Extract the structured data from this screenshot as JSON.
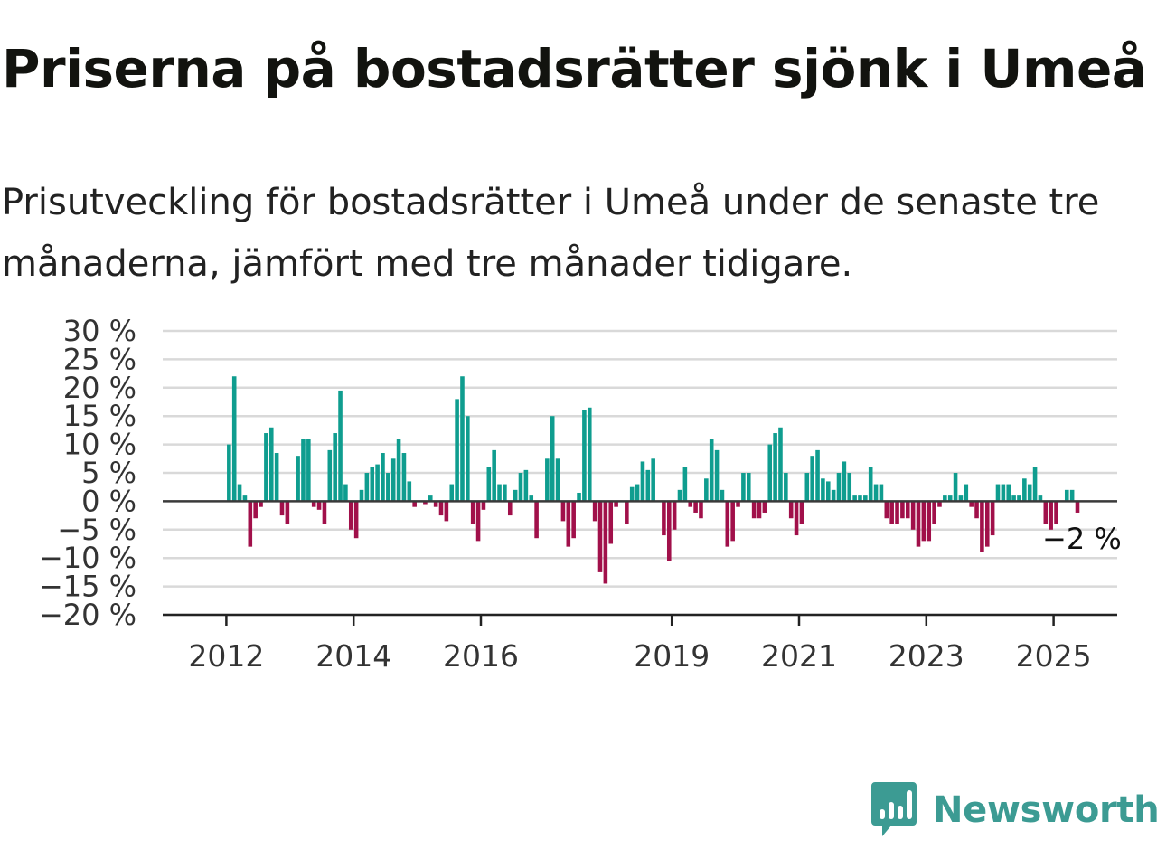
{
  "header": {
    "title": "Priserna på bostadsrätter sjönk i Umeå",
    "subtitle": "Prisutveckling för bostadsrätter i Umeå under de senaste tre månaderna, jämfört med tre månader tidigare."
  },
  "brand": {
    "name": "Newsworthy",
    "icon": "newsworthy-logo-icon"
  },
  "chart_data": {
    "type": "bar",
    "title": "",
    "xlabel": "",
    "ylabel": "",
    "unit": "%",
    "ylim": [
      -20,
      30
    ],
    "yticks": [
      30,
      25,
      20,
      15,
      10,
      5,
      0,
      -5,
      -10,
      -15,
      -20
    ],
    "ytick_labels": [
      "30 %",
      "25 %",
      "20 %",
      "15 %",
      "10 %",
      "5 %",
      "0 %",
      "−5 %",
      "−10 %",
      "−15 %",
      "−20 %"
    ],
    "xlim": [
      "2011-01",
      "2026-01"
    ],
    "xticks": [
      "2012",
      "2014",
      "2016",
      "2019",
      "2021",
      "2023",
      "2025"
    ],
    "grid": true,
    "colors": {
      "positive": "#0f9d8f",
      "negative": "#a1104a",
      "grid": "#d9d9d9",
      "axis": "#222222"
    },
    "annotation": {
      "text": "−2 %",
      "x": "2025-07"
    },
    "series": [
      {
        "start": "2012-01",
        "frequency": "monthly",
        "values": [
          10,
          22,
          3,
          1,
          -8,
          -3,
          -1,
          12,
          13,
          8.5,
          -2.5,
          -4,
          0,
          8,
          11,
          11,
          -1,
          -1.5,
          -4,
          9,
          12,
          19.5,
          3,
          -5,
          -6.5,
          2,
          5,
          6,
          6.5,
          8.5,
          5,
          7.5,
          11,
          8.5,
          3.5,
          -1,
          0,
          -0.5,
          1,
          -1,
          -2.5,
          -3.5,
          3,
          18,
          22,
          15,
          -4,
          -7,
          -1.5,
          6,
          9,
          3,
          3,
          -2.5,
          2,
          5,
          5.5,
          1,
          -6.5,
          0,
          7.5,
          15,
          7.5,
          -3.5,
          -8,
          -6.5,
          1.5,
          16,
          16.5,
          -3.5,
          -12.5,
          -14.5,
          -7.5,
          -1,
          0,
          -4,
          2.5,
          3,
          7,
          5.5,
          7.5,
          0,
          -6,
          -10.5,
          -5,
          2,
          6,
          -1,
          -2,
          -3,
          4,
          11,
          9,
          2,
          -8,
          -7,
          -1,
          5,
          5,
          -3,
          -3,
          -2,
          10,
          12,
          13,
          5,
          -3,
          -6,
          -4,
          5,
          8,
          9,
          4,
          3.5,
          2,
          5,
          7,
          5,
          1,
          1,
          1,
          6,
          3,
          3,
          -3,
          -4,
          -4,
          -3,
          -3,
          -5,
          -8,
          -7,
          -7,
          -4,
          -1,
          1,
          1,
          5,
          1,
          3,
          -1,
          -3,
          -9,
          -8,
          -6,
          3,
          3,
          3,
          1,
          1,
          4,
          3,
          6,
          1,
          -4,
          -5,
          -4,
          0,
          2,
          2,
          -2
        ]
      }
    ]
  }
}
